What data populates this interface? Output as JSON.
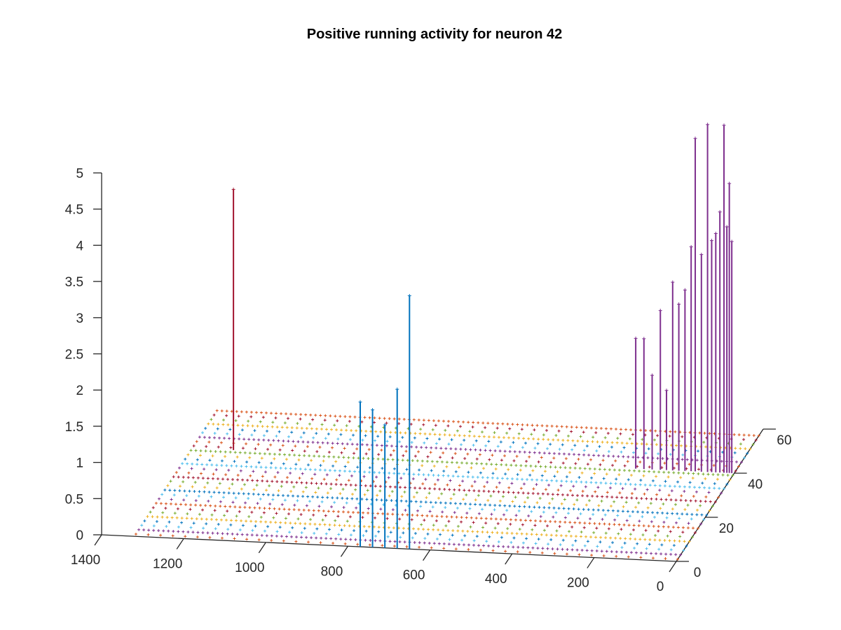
{
  "chart_data": {
    "type": "stem3",
    "title": "Positive running activity for neuron 42",
    "xlabel": "",
    "ylabel": "",
    "zlabel": "",
    "xlim": [
      0,
      1400
    ],
    "ylim": [
      0,
      60
    ],
    "zlim": [
      0,
      5
    ],
    "x_ticks": [
      "0",
      "200",
      "400",
      "600",
      "800",
      "1000",
      "1200",
      "1400"
    ],
    "y_ticks": [
      "0",
      "20",
      "40",
      "60"
    ],
    "z_ticks": [
      "0",
      "0.5",
      "1",
      "1.5",
      "2",
      "2.5",
      "3",
      "3.5",
      "4",
      "4.5",
      "5"
    ],
    "grid": false,
    "marker": "+",
    "series": [
      {
        "color": "#0072BD",
        "y": 0,
        "stems": [
          {
            "x": 650,
            "z": 3.5
          },
          {
            "x": 680,
            "z": 2.2
          },
          {
            "x": 710,
            "z": 1.7
          },
          {
            "x": 740,
            "z": 1.9
          },
          {
            "x": 770,
            "z": 2.0
          }
        ]
      },
      {
        "color": "#A2142F",
        "y": 40,
        "stems": [
          {
            "x": 1220,
            "z": 3.6
          }
        ]
      },
      {
        "color": "#7E2F8E",
        "y": 40,
        "stems": [
          {
            "x": 240,
            "z": 1.8
          },
          {
            "x": 220,
            "z": 1.8
          },
          {
            "x": 200,
            "z": 1.3
          },
          {
            "x": 180,
            "z": 2.2
          },
          {
            "x": 165,
            "z": 1.1
          },
          {
            "x": 150,
            "z": 2.6
          },
          {
            "x": 135,
            "z": 2.3
          },
          {
            "x": 120,
            "z": 2.5
          },
          {
            "x": 105,
            "z": 3.1
          },
          {
            "x": 95,
            "z": 4.6
          },
          {
            "x": 80,
            "z": 3.0
          },
          {
            "x": 65,
            "z": 4.8
          },
          {
            "x": 55,
            "z": 3.2
          },
          {
            "x": 45,
            "z": 3.3
          },
          {
            "x": 35,
            "z": 3.6
          },
          {
            "x": 25,
            "z": 4.8
          },
          {
            "x": 18,
            "z": 3.4
          },
          {
            "x": 12,
            "z": 4.0
          },
          {
            "x": 6,
            "z": 3.2
          }
        ]
      }
    ],
    "zero_marker_colors": [
      "#0072BD",
      "#D95319",
      "#EDB120",
      "#7E2F8E",
      "#77AC30",
      "#4DBEEE",
      "#A2142F"
    ]
  }
}
